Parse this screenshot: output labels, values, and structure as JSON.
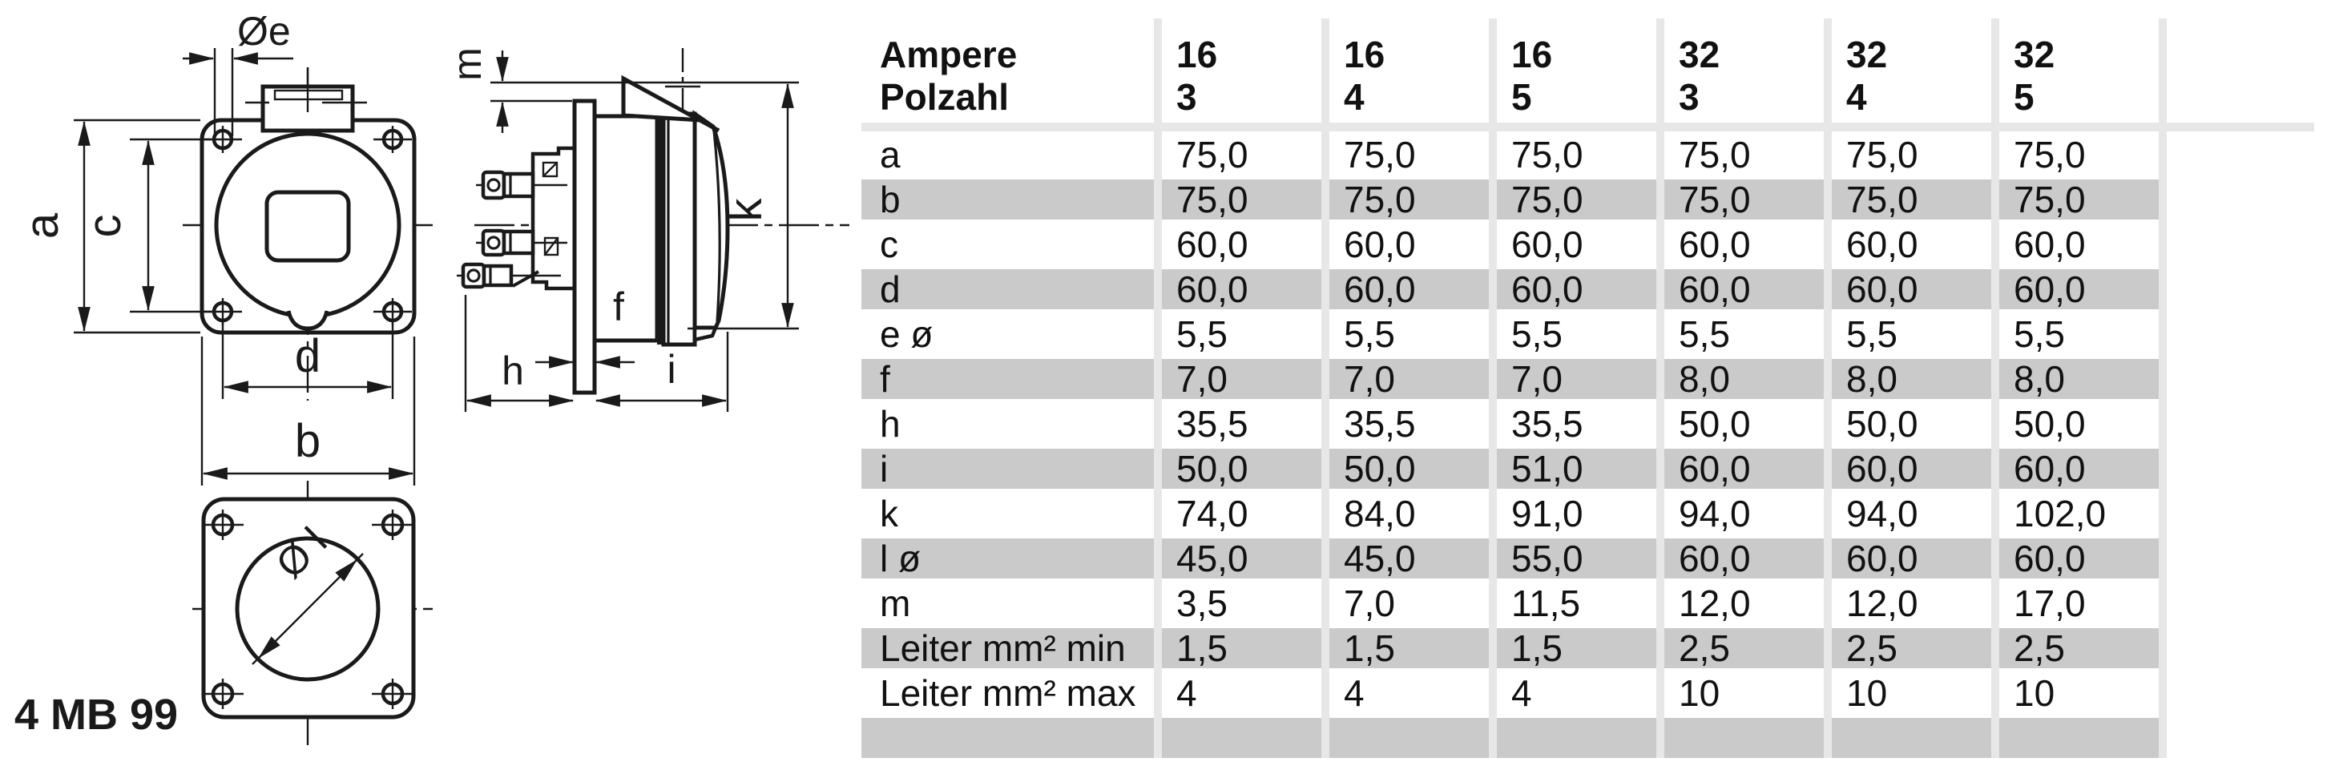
{
  "product_code": "4 MB 99",
  "colors": {
    "row_shade": "#cacaca",
    "separator": "#e7e7e7",
    "line": "#1a1a1a"
  },
  "table": {
    "header_rows": [
      {
        "label": "Ampere",
        "values": [
          "16",
          "16",
          "16",
          "32",
          "32",
          "32"
        ]
      },
      {
        "label": "Polzahl",
        "values": [
          "3",
          "4",
          "5",
          "3",
          "4",
          "5"
        ]
      }
    ],
    "rows": [
      {
        "label": "a",
        "shaded": false,
        "values": [
          "75,0",
          "75,0",
          "75,0",
          "75,0",
          "75,0",
          "75,0"
        ]
      },
      {
        "label": "b",
        "shaded": true,
        "values": [
          "75,0",
          "75,0",
          "75,0",
          "75,0",
          "75,0",
          "75,0"
        ]
      },
      {
        "label": "c",
        "shaded": false,
        "values": [
          "60,0",
          "60,0",
          "60,0",
          "60,0",
          "60,0",
          "60,0"
        ]
      },
      {
        "label": "d",
        "shaded": true,
        "values": [
          "60,0",
          "60,0",
          "60,0",
          "60,0",
          "60,0",
          "60,0"
        ]
      },
      {
        "label": "e ø",
        "shaded": false,
        "values": [
          "5,5",
          "5,5",
          "5,5",
          "5,5",
          "5,5",
          "5,5"
        ]
      },
      {
        "label": "f",
        "shaded": true,
        "values": [
          "7,0",
          "7,0",
          "7,0",
          "8,0",
          "8,0",
          "8,0"
        ]
      },
      {
        "label": "h",
        "shaded": false,
        "values": [
          "35,5",
          "35,5",
          "35,5",
          "50,0",
          "50,0",
          "50,0"
        ]
      },
      {
        "label": "i",
        "shaded": true,
        "values": [
          "50,0",
          "50,0",
          "51,0",
          "60,0",
          "60,0",
          "60,0"
        ]
      },
      {
        "label": "k",
        "shaded": false,
        "values": [
          "74,0",
          "84,0",
          "91,0",
          "94,0",
          "94,0",
          "102,0"
        ]
      },
      {
        "label": "l ø",
        "shaded": true,
        "values": [
          "45,0",
          "45,0",
          "55,0",
          "60,0",
          "60,0",
          "60,0"
        ]
      },
      {
        "label": "m",
        "shaded": false,
        "values": [
          "3,5",
          "7,0",
          "11,5",
          "12,0",
          "12,0",
          "17,0"
        ]
      },
      {
        "label": "Leiter mm² min",
        "shaded": true,
        "values": [
          "1,5",
          "1,5",
          "1,5",
          "2,5",
          "2,5",
          "2,5"
        ]
      },
      {
        "label": "Leiter mm² max",
        "shaded": false,
        "values": [
          "4",
          "4",
          "4",
          "10",
          "10",
          "10"
        ]
      },
      {
        "label": "",
        "shaded": true,
        "values": [
          "",
          "",
          "",
          "",
          "",
          ""
        ]
      }
    ]
  },
  "drawing": {
    "labels": {
      "e_diameter": "Øe",
      "a": "a",
      "c": "c",
      "d": "d",
      "b": "b",
      "m": "m",
      "k": "k",
      "f": "f",
      "h": "h",
      "i": "i",
      "l_diameter": "Ø l"
    }
  }
}
